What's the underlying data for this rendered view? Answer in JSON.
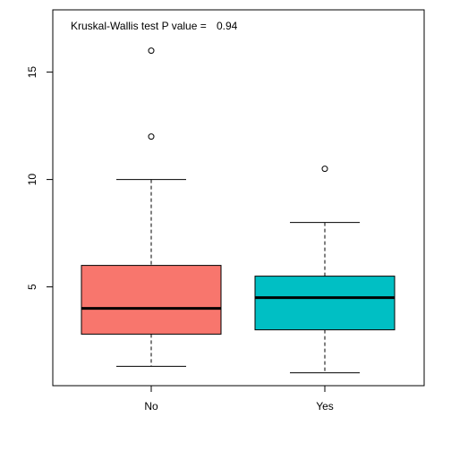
{
  "chart_data": {
    "type": "boxplot",
    "title": "",
    "xlabel": "",
    "ylabel": "",
    "annotation": {
      "label": "Kruskal-Wallis test P value =",
      "value": "0.94",
      "placement": "top-left"
    },
    "categories": [
      "No",
      "Yes"
    ],
    "yticks": [
      5,
      10,
      15
    ],
    "ylim": [
      0.4,
      17.9
    ],
    "grid": false,
    "legend": "none",
    "boxes": [
      {
        "category": "No",
        "color": "#F8766D",
        "whisker_low": 1.3,
        "q1": 2.8,
        "median": 4.0,
        "q3": 6.0,
        "whisker_high": 10.0,
        "outliers": [
          12.0,
          16.0
        ]
      },
      {
        "category": "Yes",
        "color": "#00BFC4",
        "whisker_low": 1.0,
        "q1": 3.0,
        "median": 4.5,
        "q3": 5.5,
        "whisker_high": 8.0,
        "outliers": [
          10.5
        ]
      }
    ]
  }
}
